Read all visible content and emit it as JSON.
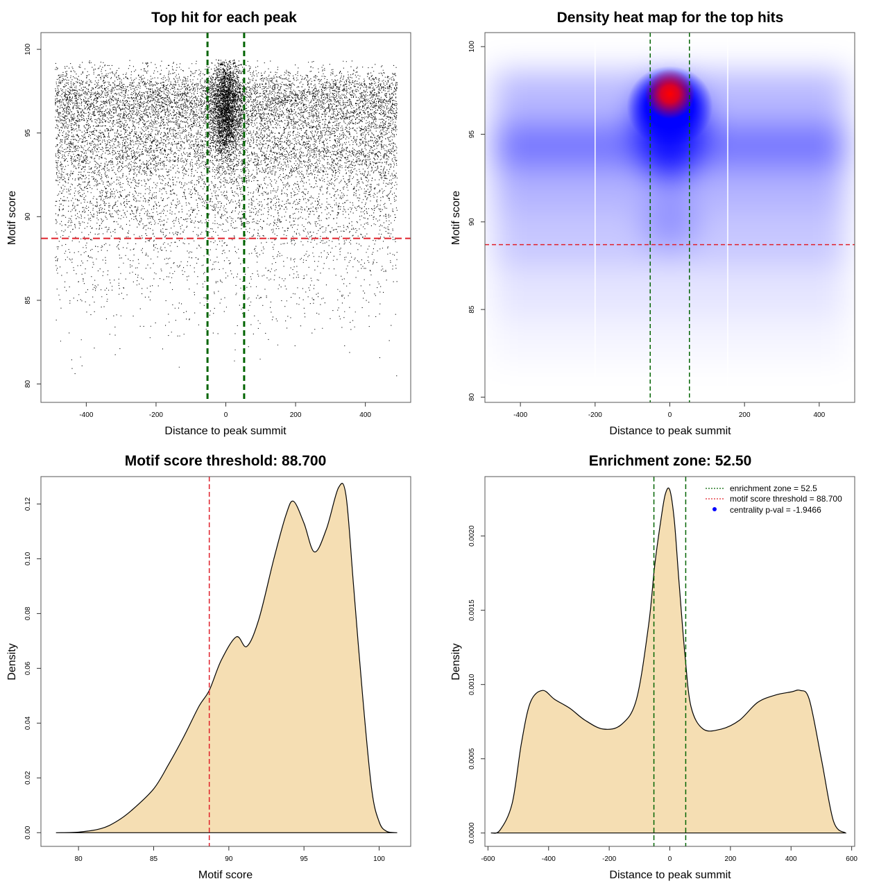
{
  "colors": {
    "fill": "#f5deb3",
    "zone": "#006400",
    "threshold": "#e0202a",
    "points": "#000000",
    "heat_low": "#ffffff",
    "heat_mid": "#0000ff",
    "heat_high": "#ff0000",
    "legend_dot": "#0000ff"
  },
  "chart_data": [
    {
      "id": "scatter",
      "type": "scatter",
      "title": "Top hit for each peak",
      "xlabel": "Distance to peak summit",
      "ylabel": "Motif score",
      "xlim": [
        -530,
        530
      ],
      "ylim": [
        78.9,
        101.0
      ],
      "xticks": [
        -400,
        -200,
        0,
        200,
        400
      ],
      "yticks": [
        80,
        85,
        90,
        95,
        100
      ],
      "x_range": [
        -490,
        490
      ],
      "point_count": 16000,
      "enrichment_zone": [
        -52.5,
        52.5
      ],
      "threshold": 88.7
    },
    {
      "id": "heatmap",
      "type": "heatmap",
      "title": "Density heat map for the top hits",
      "xlabel": "Distance to peak summit",
      "ylabel": "Motif score",
      "xlim": [
        -495,
        495
      ],
      "ylim": [
        79.7,
        100.8
      ],
      "xticks": [
        -400,
        -200,
        0,
        200,
        400
      ],
      "yticks": [
        80,
        85,
        90,
        95,
        100
      ],
      "hotspot": {
        "x": 0,
        "y": 97.3
      },
      "enrichment_zone": [
        -52.5,
        52.5
      ],
      "threshold": 88.7
    },
    {
      "id": "score_density",
      "type": "area",
      "title": "Motif score threshold: 88.700",
      "xlabel": "Motif score",
      "ylabel": "Density",
      "xlim": [
        77.5,
        102.1
      ],
      "ylim": [
        -0.005,
        0.13
      ],
      "xticks": [
        80,
        85,
        90,
        95,
        100
      ],
      "yticks": [
        0.0,
        0.02,
        0.04,
        0.06,
        0.08,
        0.1,
        0.12
      ],
      "ytick_labels": [
        "0.00",
        "0.02",
        "0.04",
        "0.06",
        "0.08",
        "0.10",
        "0.12"
      ],
      "x": [
        78.5,
        80,
        81.5,
        82.5,
        83.5,
        85,
        86,
        87,
        88,
        88.7,
        89.5,
        90.5,
        91.2,
        92,
        93,
        93.8,
        94.3,
        95,
        95.7,
        96.5,
        97.3,
        97.8,
        98.3,
        98.9,
        99.5,
        100,
        100.5,
        101.2
      ],
      "y": [
        0,
        0.0002,
        0.0015,
        0.004,
        0.008,
        0.016,
        0.025,
        0.035,
        0.046,
        0.052,
        0.063,
        0.0715,
        0.068,
        0.078,
        0.1,
        0.116,
        0.121,
        0.113,
        0.1025,
        0.111,
        0.126,
        0.123,
        0.09,
        0.05,
        0.016,
        0.004,
        0.0005,
        0
      ],
      "threshold": 88.7
    },
    {
      "id": "distance_density",
      "type": "area",
      "title": "Enrichment zone: 52.50",
      "xlabel": "Distance to peak summit",
      "ylabel": "Density",
      "xlim": [
        -610,
        610
      ],
      "ylim": [
        -9e-05,
        0.0024
      ],
      "xticks": [
        -600,
        -400,
        -200,
        0,
        200,
        400,
        600
      ],
      "yticks": [
        0,
        0.0005,
        0.001,
        0.0015,
        0.002
      ],
      "ytick_labels": [
        "0.0000",
        "0.0005",
        "0.0010",
        "0.0015",
        "0.0020"
      ],
      "x": [
        -590,
        -560,
        -520,
        -490,
        -460,
        -420,
        -380,
        -330,
        -280,
        -220,
        -160,
        -110,
        -70,
        -50,
        -30,
        -15,
        0,
        15,
        30,
        50,
        70,
        110,
        170,
        230,
        290,
        350,
        400,
        430,
        460,
        500,
        540,
        580
      ],
      "y": [
        0,
        2e-05,
        0.0002,
        0.0006,
        0.00088,
        0.00096,
        0.0009,
        0.00084,
        0.00076,
        0.0007,
        0.00073,
        0.0009,
        0.0014,
        0.0018,
        0.0021,
        0.00228,
        0.00231,
        0.0021,
        0.0017,
        0.0012,
        0.00085,
        0.0007,
        0.0007,
        0.00076,
        0.00088,
        0.00093,
        0.00095,
        0.00096,
        0.0009,
        0.0005,
        8e-05,
        0
      ],
      "enrichment_zone": [
        -52.5,
        52.5
      ],
      "legend": [
        "enrichment zone = 52.5",
        "motif score threshold = 88.700",
        "centrality p-val = -1.9466"
      ]
    }
  ]
}
